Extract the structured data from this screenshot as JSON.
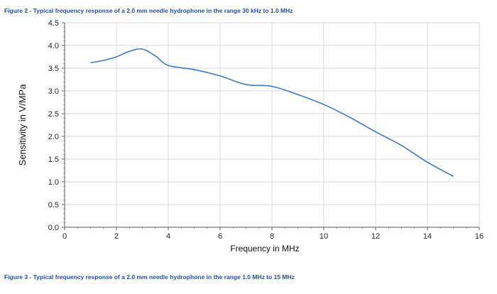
{
  "figure_top_caption": "Figure 2 - Typical frequency response of a 2.0 mm needle hydrophone in the range 30 kHz to 1.0 MHz",
  "figure_bottom_caption": "Figure 3 - Typical frequency response of a 2.0 mm needle hydrophone in the range 1.0 MHz to 15 MHz",
  "chart_data": {
    "type": "line",
    "title": "",
    "xlabel": "Frequency in MHz",
    "ylabel": "Sensitivity in V/MPa",
    "xlim": [
      0,
      16
    ],
    "ylim": [
      0,
      4.5
    ],
    "xticks": [
      0,
      2,
      4,
      6,
      8,
      10,
      12,
      14,
      16
    ],
    "yticks": [
      "0.0",
      "0.5",
      "1.0",
      "1.5",
      "2.0",
      "2.5",
      "3.0",
      "3.5",
      "4.0",
      "4.5"
    ],
    "grid": true,
    "line_color": "#3c78c0",
    "series": [
      {
        "name": "Sensitivity",
        "x": [
          1,
          1.5,
          2,
          2.5,
          3,
          3.5,
          4,
          5,
          6,
          7,
          8,
          9,
          10,
          11,
          12,
          13,
          14,
          15
        ],
        "y": [
          3.62,
          3.67,
          3.75,
          3.87,
          3.92,
          3.77,
          3.56,
          3.47,
          3.33,
          3.14,
          3.1,
          2.92,
          2.7,
          2.42,
          2.1,
          1.8,
          1.43,
          1.12
        ]
      }
    ]
  }
}
